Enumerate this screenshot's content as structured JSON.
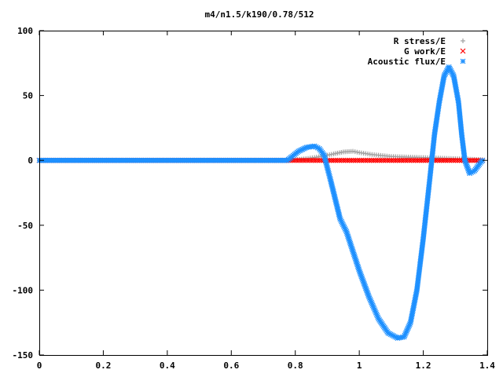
{
  "chart_data": {
    "type": "scatter",
    "title": "m4/n1.5/k190/0.78/512",
    "xlabel": "",
    "ylabel": "",
    "xlim": [
      0,
      1.4
    ],
    "ylim": [
      -150,
      100
    ],
    "xticks": [
      0,
      0.2,
      0.4,
      0.6,
      0.8,
      1,
      1.2,
      1.4
    ],
    "xtick_labels": [
      "0",
      "0.2",
      "0.4",
      "0.6",
      "0.8",
      "1",
      "1.2",
      "1.4"
    ],
    "yticks": [
      -150,
      -100,
      -50,
      0,
      50,
      100
    ],
    "ytick_labels": [
      "-150",
      "-100",
      "-50",
      "0",
      "50",
      "100"
    ],
    "grid": false,
    "legend_position": "top-right",
    "series": [
      {
        "name": "R stress/E",
        "marker": "plus",
        "color": "#a0a0a0",
        "points": [
          [
            0,
            0
          ],
          [
            0.78,
            0
          ],
          [
            0.8,
            0.5
          ],
          [
            0.84,
            1.5
          ],
          [
            0.88,
            3
          ],
          [
            0.92,
            5
          ],
          [
            0.95,
            6.5
          ],
          [
            0.98,
            7
          ],
          [
            1.0,
            6
          ],
          [
            1.04,
            4.5
          ],
          [
            1.1,
            3
          ],
          [
            1.16,
            2.5
          ],
          [
            1.22,
            2
          ],
          [
            1.28,
            1.5
          ],
          [
            1.34,
            1
          ],
          [
            1.385,
            0.5
          ]
        ]
      },
      {
        "name": "G work/E",
        "marker": "cross",
        "color": "#ff0000",
        "points": [
          [
            0,
            0
          ],
          [
            0.78,
            0
          ],
          [
            0.9,
            0
          ],
          [
            1.0,
            0
          ],
          [
            1.1,
            0
          ],
          [
            1.2,
            0
          ],
          [
            1.3,
            0
          ],
          [
            1.385,
            0
          ]
        ]
      },
      {
        "name": "Acoustic flux/E",
        "marker": "star",
        "color": "#1e90ff",
        "points": [
          [
            0,
            0
          ],
          [
            0.775,
            0
          ],
          [
            0.79,
            3
          ],
          [
            0.81,
            7
          ],
          [
            0.835,
            10
          ],
          [
            0.86,
            11
          ],
          [
            0.875,
            9
          ],
          [
            0.89,
            4
          ],
          [
            0.91,
            -15
          ],
          [
            0.925,
            -30
          ],
          [
            0.94,
            -45
          ],
          [
            0.96,
            -55
          ],
          [
            0.98,
            -70
          ],
          [
            1.0,
            -85
          ],
          [
            1.03,
            -105
          ],
          [
            1.06,
            -122
          ],
          [
            1.09,
            -133
          ],
          [
            1.12,
            -137
          ],
          [
            1.14,
            -136
          ],
          [
            1.16,
            -125
          ],
          [
            1.18,
            -100
          ],
          [
            1.2,
            -60
          ],
          [
            1.22,
            -15
          ],
          [
            1.235,
            20
          ],
          [
            1.25,
            45
          ],
          [
            1.265,
            65
          ],
          [
            1.28,
            72
          ],
          [
            1.295,
            65
          ],
          [
            1.31,
            45
          ],
          [
            1.32,
            20
          ],
          [
            1.33,
            0
          ],
          [
            1.345,
            -10
          ],
          [
            1.36,
            -8
          ],
          [
            1.375,
            -3
          ],
          [
            1.385,
            0
          ]
        ]
      }
    ]
  }
}
